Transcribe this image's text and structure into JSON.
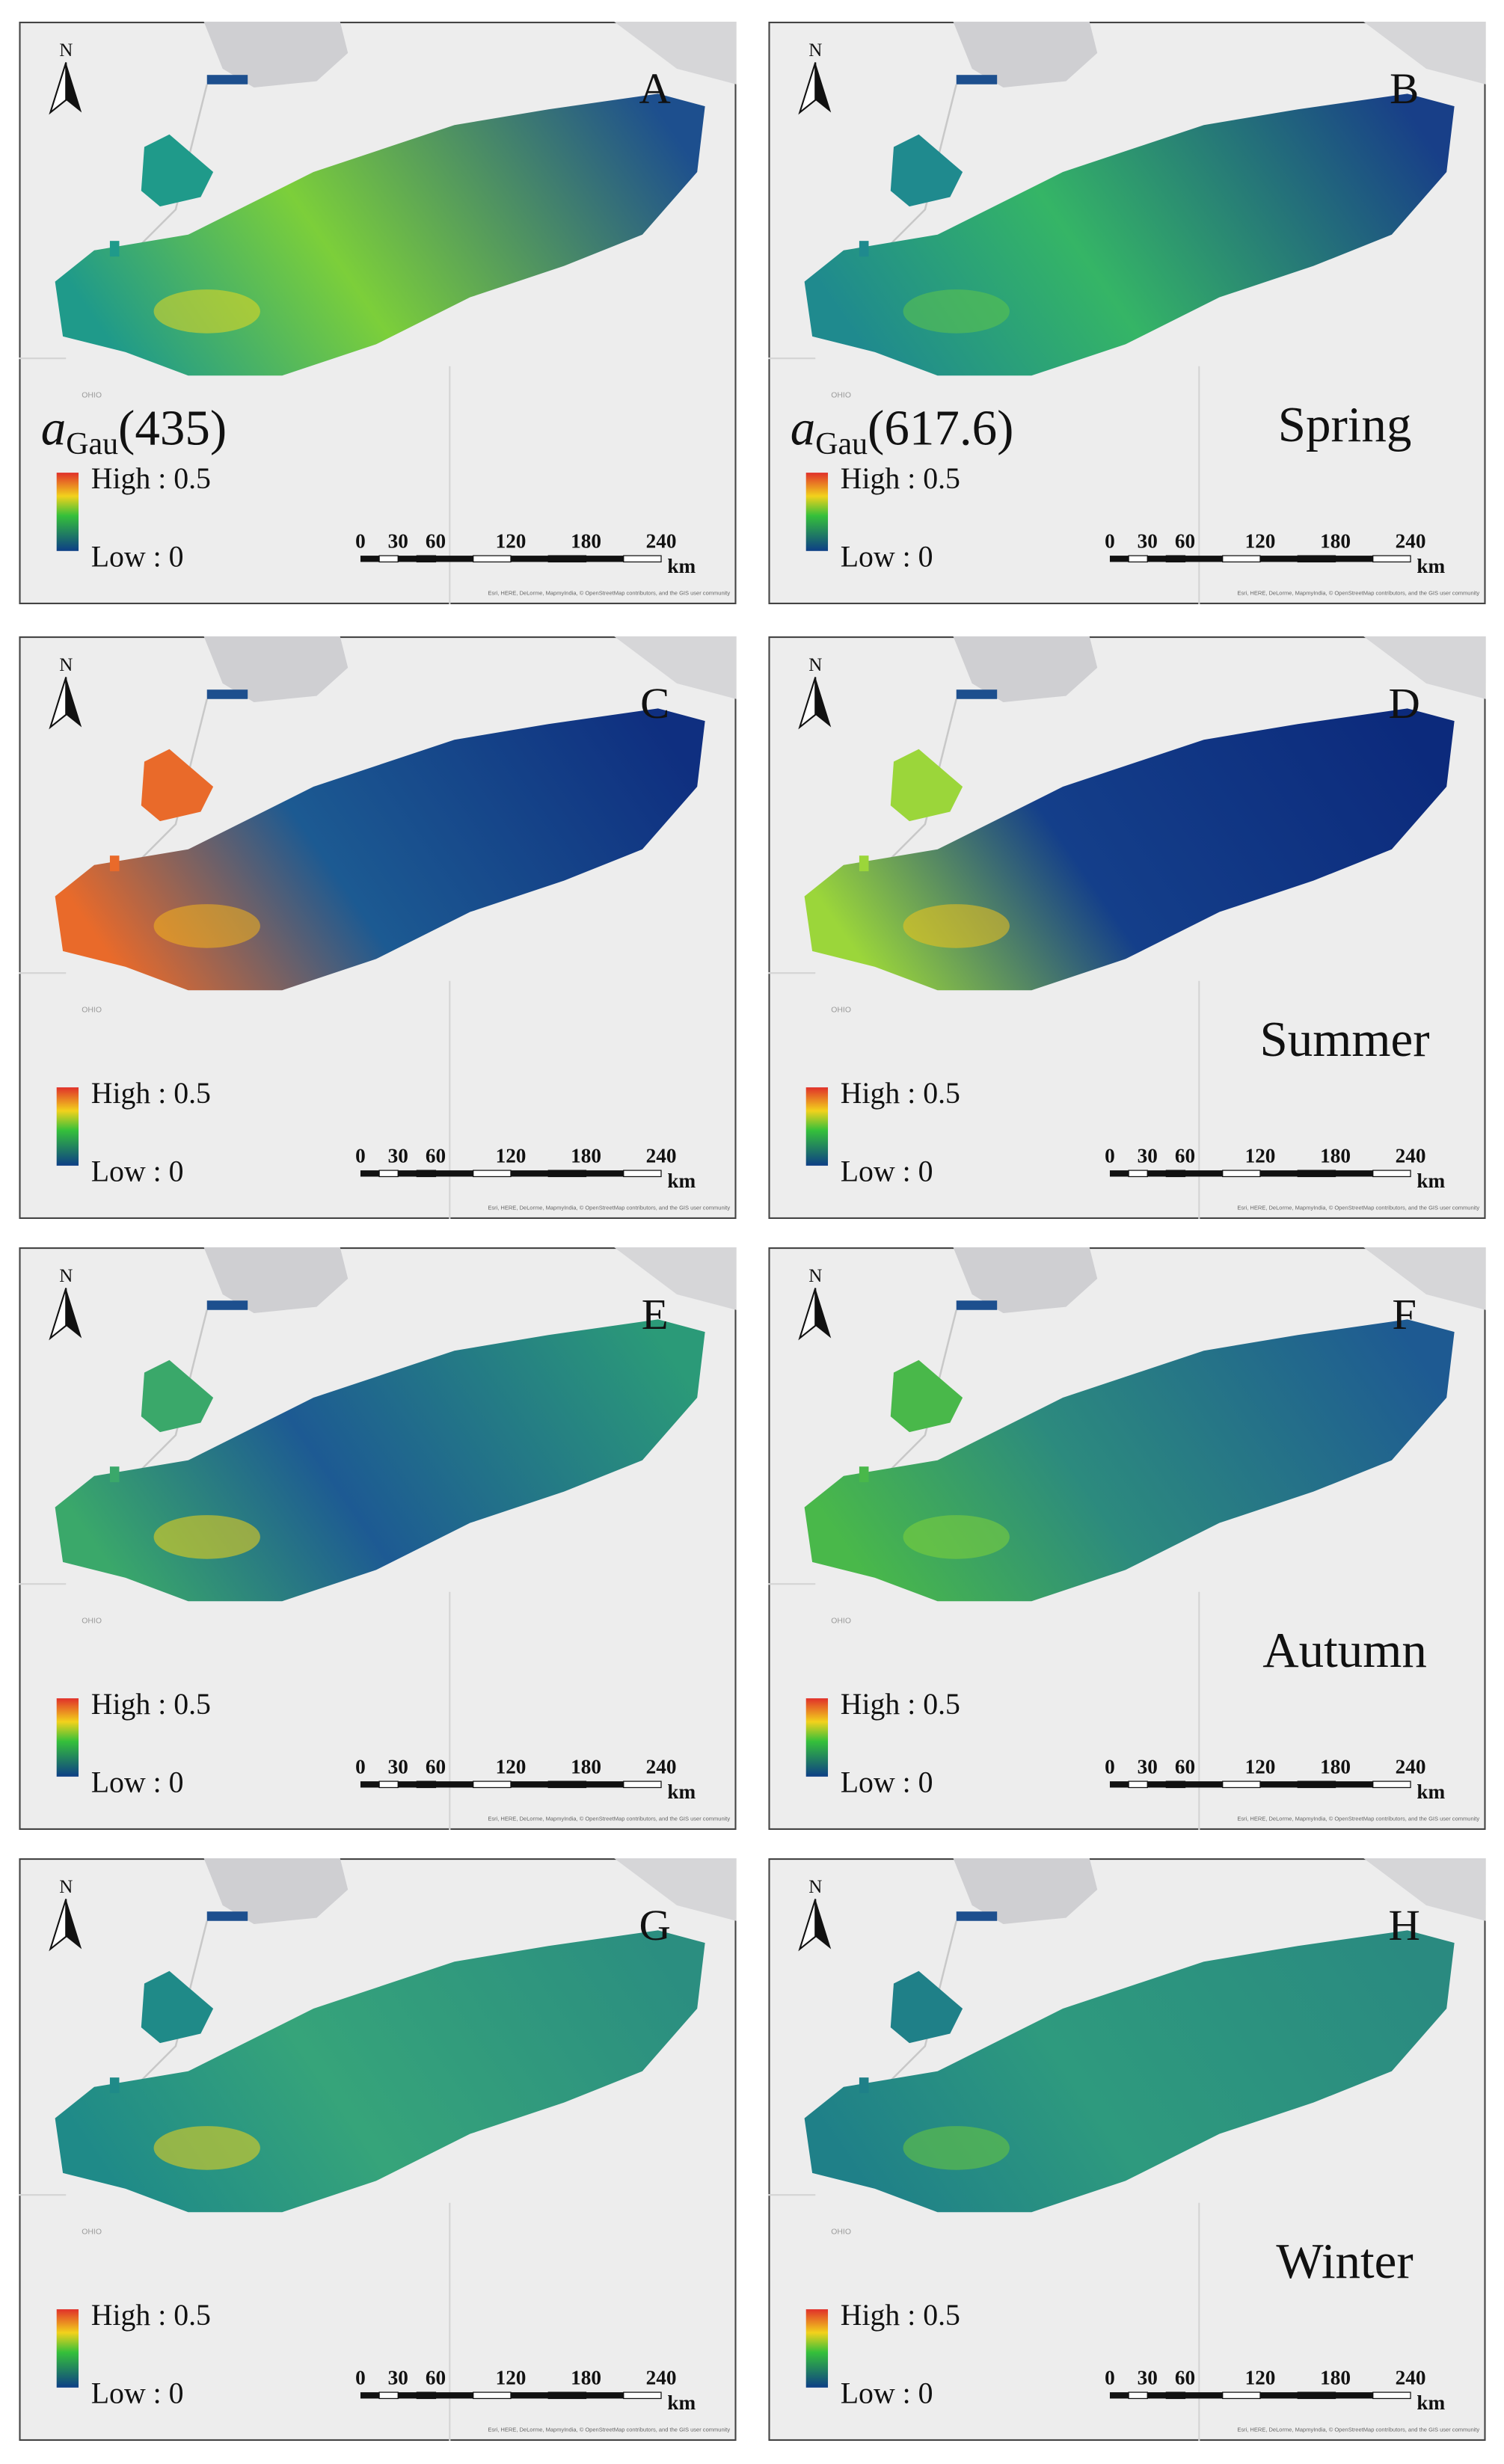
{
  "panels": [
    {
      "letter": "A",
      "north": "N",
      "state_label": "OHIO",
      "variable": {
        "symbol": "a",
        "subscript": "Gau",
        "argument": "(435)"
      },
      "legend": {
        "high": "High : 0.5",
        "low": "Low : 0"
      },
      "scale_bar": {
        "ticks": [
          0,
          30,
          60,
          120,
          180,
          240
        ],
        "unit": "km"
      },
      "attribution": "Esri, HERE, DeLorme, MapmyIndia, © OpenStreetMap contributors, and the GIS user community"
    },
    {
      "letter": "B",
      "north": "N",
      "state_label": "OHIO",
      "variable": {
        "symbol": "a",
        "subscript": "Gau",
        "argument": "(617.6)"
      },
      "season": "Spring",
      "legend": {
        "high": "High : 0.5",
        "low": "Low : 0"
      },
      "scale_bar": {
        "ticks": [
          0,
          30,
          60,
          120,
          180,
          240
        ],
        "unit": "km"
      },
      "attribution": "Esri, HERE, DeLorme, MapmyIndia, © OpenStreetMap contributors, and the GIS user community"
    },
    {
      "letter": "C",
      "north": "N",
      "state_label": "OHIO",
      "legend": {
        "high": "High : 0.5",
        "low": "Low : 0"
      },
      "scale_bar": {
        "ticks": [
          0,
          30,
          60,
          120,
          180,
          240
        ],
        "unit": "km"
      },
      "attribution": "Esri, HERE, DeLorme, MapmyIndia, © OpenStreetMap contributors, and the GIS user community"
    },
    {
      "letter": "D",
      "north": "N",
      "state_label": "OHIO",
      "season": "Summer",
      "legend": {
        "high": "High : 0.5",
        "low": "Low : 0"
      },
      "scale_bar": {
        "ticks": [
          0,
          30,
          60,
          120,
          180,
          240
        ],
        "unit": "km"
      },
      "attribution": "Esri, HERE, DeLorme, MapmyIndia, © OpenStreetMap contributors, and the GIS user community"
    },
    {
      "letter": "E",
      "north": "N",
      "state_label": "OHIO",
      "legend": {
        "high": "High : 0.5",
        "low": "Low : 0"
      },
      "scale_bar": {
        "ticks": [
          0,
          30,
          60,
          120,
          180,
          240
        ],
        "unit": "km"
      },
      "attribution": "Esri, HERE, DeLorme, MapmyIndia, © OpenStreetMap contributors, and the GIS user community"
    },
    {
      "letter": "F",
      "north": "N",
      "state_label": "OHIO",
      "season": "Autumn",
      "legend": {
        "high": "High : 0.5",
        "low": "Low : 0"
      },
      "scale_bar": {
        "ticks": [
          0,
          30,
          60,
          120,
          180,
          240
        ],
        "unit": "km"
      },
      "attribution": "Esri, HERE, DeLorme, MapmyIndia, © OpenStreetMap contributors, and the GIS user community"
    },
    {
      "letter": "G",
      "north": "N",
      "state_label": "OHIO",
      "legend": {
        "high": "High : 0.5",
        "low": "Low : 0"
      },
      "scale_bar": {
        "ticks": [
          0,
          30,
          60,
          120,
          180,
          240
        ],
        "unit": "km"
      },
      "attribution": "Esri, HERE, DeLorme, MapmyIndia, © OpenStreetMap contributors, and the GIS user community"
    },
    {
      "letter": "H",
      "north": "N",
      "state_label": "OHIO",
      "season": "Winter",
      "legend": {
        "high": "High : 0.5",
        "low": "Low : 0"
      },
      "scale_bar": {
        "ticks": [
          0,
          30,
          60,
          120,
          180,
          240
        ],
        "unit": "km"
      },
      "attribution": "Esri, HERE, DeLorme, MapmyIndia, © OpenStreetMap contributors, and the GIS user community"
    }
  ]
}
